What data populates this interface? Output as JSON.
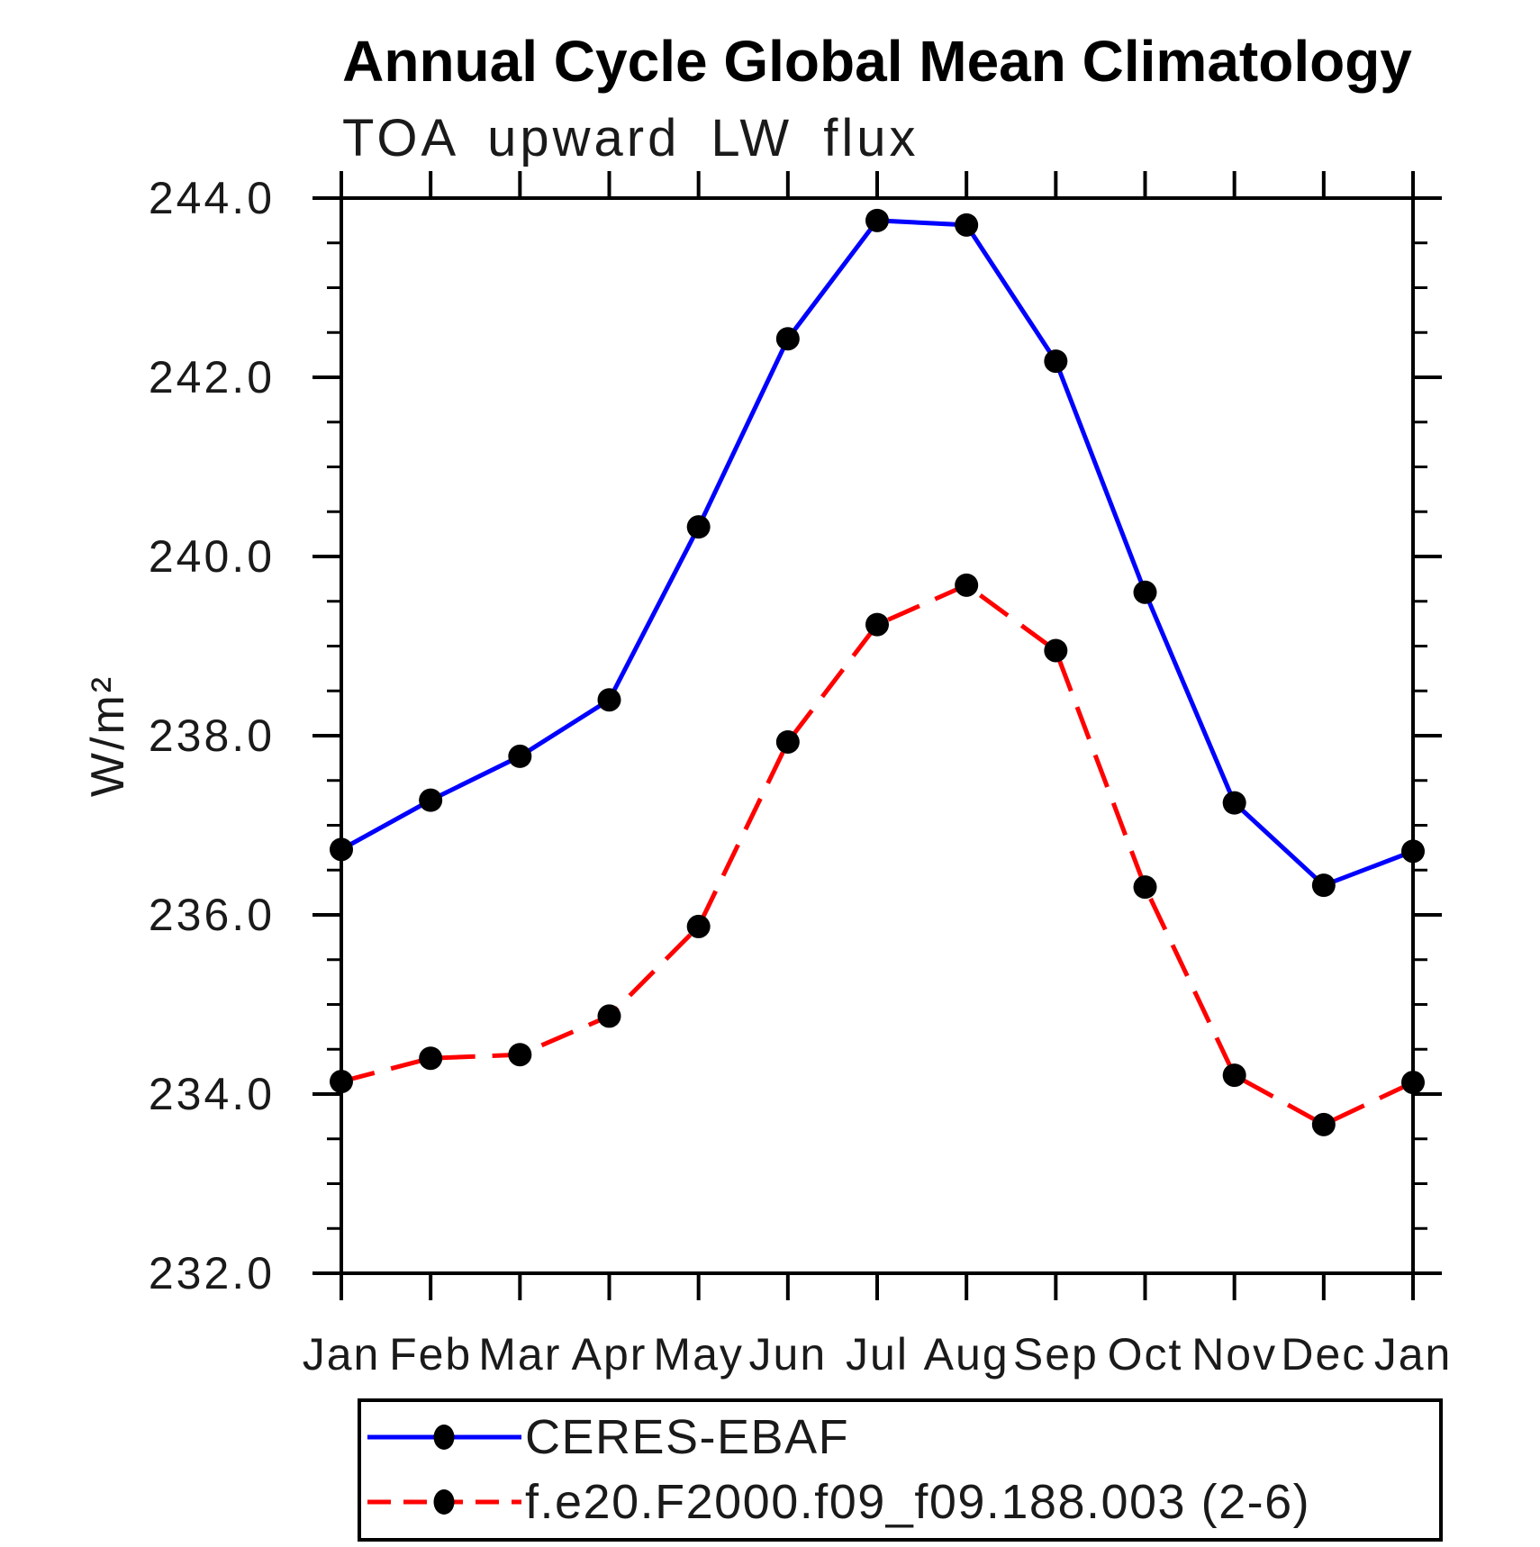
{
  "chart_data": {
    "type": "line",
    "title": "Annual Cycle Global Mean Climatology",
    "subtitle": "TOA upward LW flux",
    "ylabel": "W/m²",
    "xlabel": "",
    "categories": [
      "Jan",
      "Feb",
      "Mar",
      "Apr",
      "May",
      "Jun",
      "Jul",
      "Aug",
      "Sep",
      "Oct",
      "Nov",
      "Dec",
      "Jan"
    ],
    "ylim": [
      232.0,
      244.0
    ],
    "ytick_step": 2.0,
    "yminor_step": 0.5,
    "ytick_labels": [
      "232.0",
      "234.0",
      "236.0",
      "238.0",
      "240.0",
      "242.0",
      "244.0"
    ],
    "grid": false,
    "legend_position": "bottom-left-box",
    "axis_color": "#000000",
    "marker_color": "#000000",
    "series": [
      {
        "name": "CERES-EBAF",
        "color": "#0000ff",
        "line_style": "solid",
        "marker": "filled-circle",
        "values": [
          236.73,
          237.28,
          237.77,
          238.4,
          240.33,
          242.43,
          243.75,
          243.7,
          242.18,
          239.6,
          237.25,
          236.33,
          236.71
        ]
      },
      {
        "name": "f.e20.F2000.f09_f09.188.003 (2-6)",
        "color": "#ff0000",
        "line_style": "dashed",
        "marker": "filled-circle",
        "values": [
          234.14,
          234.4,
          234.44,
          234.87,
          235.87,
          237.93,
          239.24,
          239.68,
          238.95,
          236.31,
          234.21,
          233.66,
          234.13
        ]
      }
    ]
  }
}
